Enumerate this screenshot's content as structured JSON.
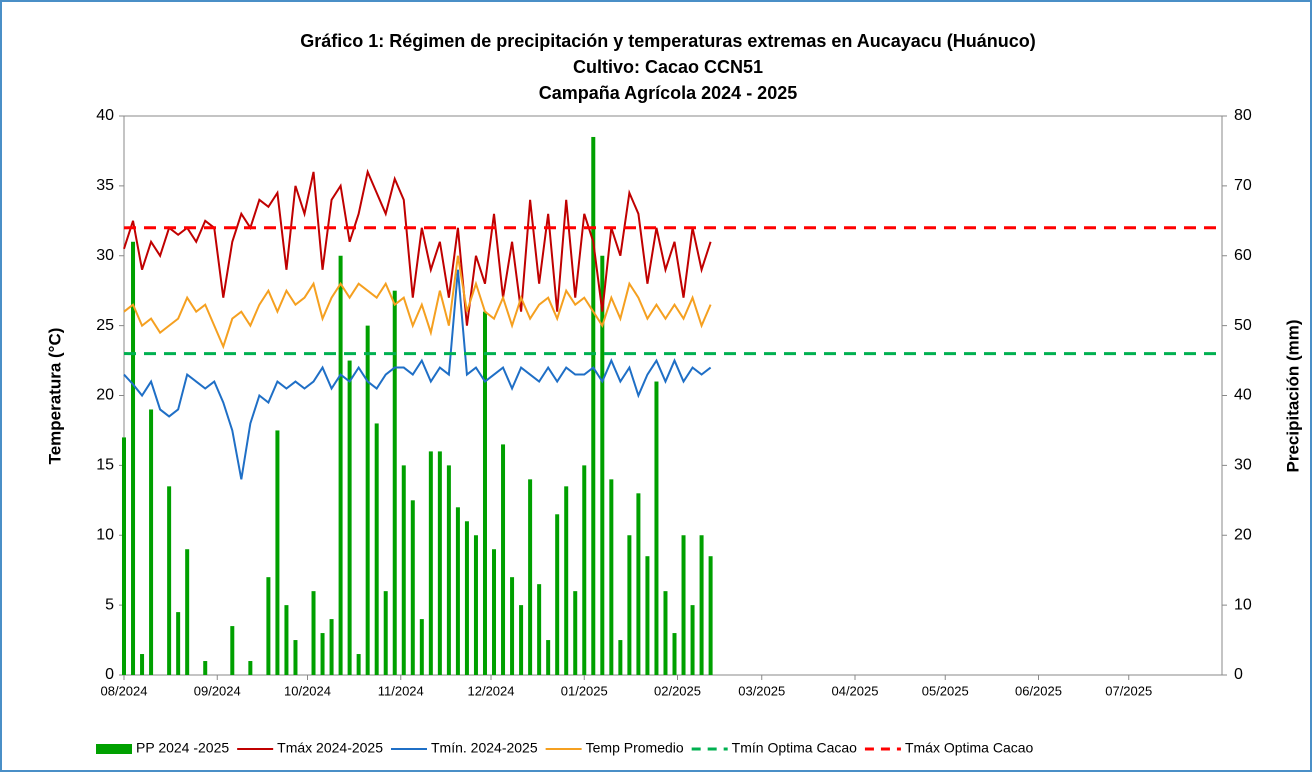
{
  "chart_data": {
    "type": "combo",
    "title": [
      "Gráfico 1: Régimen de precipitación y temperaturas extremas en Aucayacu (Huánuco)",
      "Cultivo: Cacao CCN51",
      "Campaña Agrícola 2024 - 2025"
    ],
    "ylabel": "Temperatura (°C)",
    "y2label": "Precipitación (mm)",
    "xlim": [
      0,
      365
    ],
    "xticks": [
      {
        "value": 0,
        "label": "08/2024"
      },
      {
        "value": 31,
        "label": "09/2024"
      },
      {
        "value": 61,
        "label": "10/2024"
      },
      {
        "value": 92,
        "label": "11/2024"
      },
      {
        "value": 122,
        "label": "12/2024"
      },
      {
        "value": 153,
        "label": "01/2025"
      },
      {
        "value": 184,
        "label": "02/2025"
      },
      {
        "value": 212,
        "label": "03/2025"
      },
      {
        "value": 243,
        "label": "04/2025"
      },
      {
        "value": 273,
        "label": "05/2025"
      },
      {
        "value": 304,
        "label": "06/2025"
      },
      {
        "value": 334,
        "label": "07/2025"
      }
    ],
    "ylim": [
      0,
      40
    ],
    "yticks": [
      0,
      5,
      10,
      15,
      20,
      25,
      30,
      35,
      40
    ],
    "y2lim": [
      0,
      80
    ],
    "y2ticks": [
      0,
      10,
      20,
      30,
      40,
      50,
      60,
      70,
      80
    ],
    "x": [
      0,
      3,
      6,
      9,
      12,
      15,
      18,
      21,
      24,
      27,
      30,
      33,
      36,
      39,
      42,
      45,
      48,
      51,
      54,
      57,
      60,
      63,
      66,
      69,
      72,
      75,
      78,
      81,
      84,
      87,
      90,
      93,
      96,
      99,
      102,
      105,
      108,
      111,
      114,
      117,
      120,
      123,
      126,
      129,
      132,
      135,
      138,
      141,
      144,
      147,
      150,
      153,
      156,
      159,
      162,
      165,
      168,
      171,
      174,
      177,
      180,
      183,
      186,
      189,
      192,
      195
    ],
    "series": [
      {
        "name": "PP 2024 -2025",
        "type": "bar",
        "axis": "y2",
        "color": "#00a000",
        "values": [
          34,
          62,
          3,
          38,
          0,
          27,
          9,
          18,
          0,
          2,
          0,
          0,
          7,
          0,
          2,
          0,
          14,
          35,
          10,
          5,
          0,
          12,
          6,
          8,
          60,
          45,
          3,
          50,
          36,
          12,
          55,
          30,
          25,
          8,
          32,
          32,
          30,
          24,
          22,
          20,
          52,
          18,
          33,
          14,
          10,
          28,
          13,
          5,
          23,
          27,
          12,
          30,
          77,
          60,
          28,
          5,
          20,
          26,
          17,
          42,
          12,
          6,
          20,
          10,
          20,
          17
        ]
      },
      {
        "name": "Tmáx 2024-2025",
        "type": "line",
        "color": "#c00000",
        "values": [
          30.5,
          32.5,
          29,
          31,
          30,
          32,
          31.5,
          32,
          31,
          32.5,
          32,
          27,
          31,
          33,
          32,
          34,
          33.5,
          34.5,
          29,
          35,
          33,
          36,
          29,
          34,
          35,
          31,
          33,
          36,
          34.5,
          33,
          35.5,
          34,
          27,
          32,
          29,
          31,
          27,
          32,
          25,
          30,
          28,
          33,
          27,
          31,
          26,
          34,
          28,
          33,
          26,
          34,
          27,
          33,
          31,
          26,
          32,
          30,
          34.5,
          33,
          28,
          32,
          29,
          31,
          27,
          32,
          29,
          31
        ]
      },
      {
        "name": "Tmín. 2024-2025",
        "type": "line",
        "color": "#1f6fc6",
        "values": [
          21.5,
          20.8,
          20,
          21,
          19,
          18.5,
          19,
          21.5,
          21,
          20.5,
          21,
          19.5,
          17.5,
          14,
          18,
          20,
          19.5,
          21,
          20.5,
          21,
          20.5,
          21,
          22,
          20.5,
          21.5,
          21,
          22,
          21,
          20.5,
          21.5,
          22,
          22,
          21.5,
          22.5,
          21,
          22,
          21.5,
          29,
          21.5,
          22,
          21,
          21.5,
          22,
          20.5,
          22,
          21.5,
          21,
          22,
          21,
          22,
          21.5,
          21.5,
          22,
          21,
          22.5,
          21,
          22,
          20,
          21.5,
          22.5,
          21,
          22.5,
          21,
          22,
          21.5,
          22
        ]
      },
      {
        "name": "Temp Promedio",
        "type": "line",
        "color": "#f5a020",
        "values": [
          26,
          26.5,
          25,
          25.5,
          24.5,
          25,
          25.5,
          27,
          26,
          26.5,
          25,
          23.5,
          25.5,
          26,
          25,
          26.5,
          27.5,
          26,
          27.5,
          26.5,
          27,
          28,
          25.5,
          27,
          28,
          27,
          28,
          27.5,
          27,
          28,
          26.5,
          27,
          25,
          26.5,
          24.5,
          27.5,
          25,
          30,
          26,
          28,
          26,
          25.5,
          27,
          25,
          27,
          25.5,
          26.5,
          27,
          25.5,
          27.5,
          26.5,
          27,
          26,
          25,
          27,
          25.5,
          28,
          27,
          25.5,
          26.5,
          25.5,
          26.5,
          25.5,
          27,
          25,
          26.5
        ]
      }
    ],
    "reference_lines": [
      {
        "name": "Tmín Optima Cacao",
        "value": 23,
        "color": "#00b050"
      },
      {
        "name": "Tmáx Optima Cacao",
        "value": 32,
        "color": "#ff0000"
      }
    ]
  }
}
